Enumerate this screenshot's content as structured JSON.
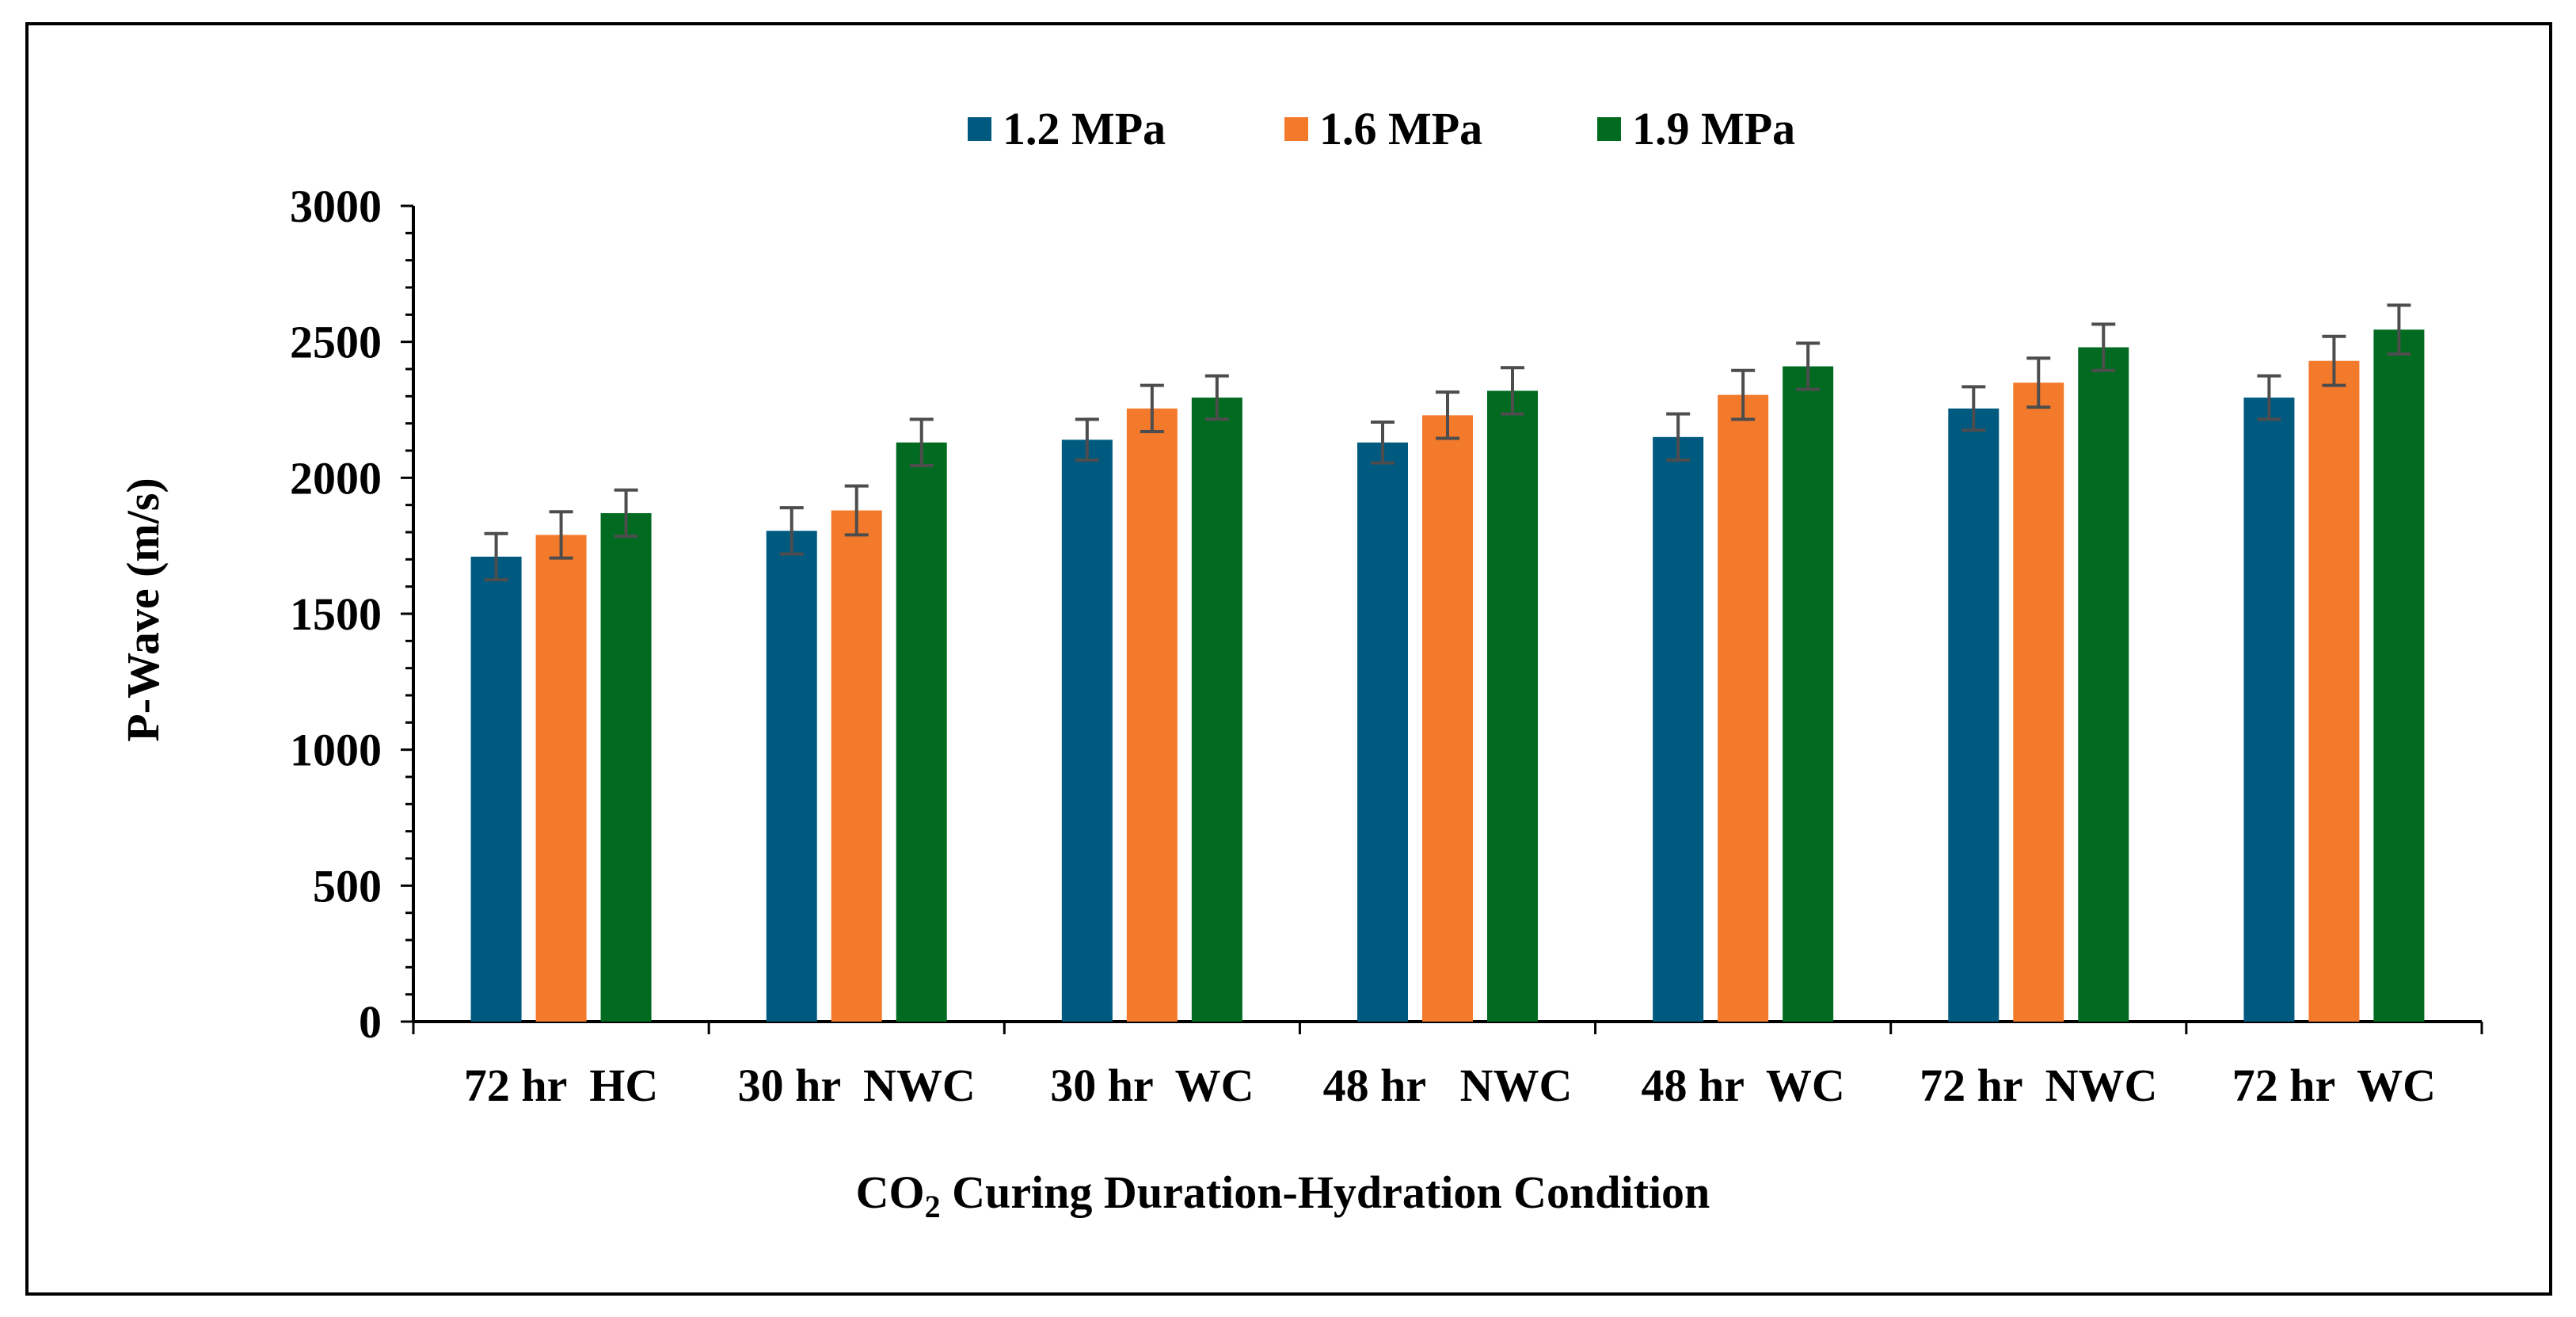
{
  "chart_data": {
    "type": "bar",
    "title": "",
    "xlabel_main": "CO",
    "xlabel_sub": "2",
    "xlabel_rest": " Curing Duration-Hydration Condition",
    "ylabel": "P-Wave  (m/s)",
    "ylim": [
      0,
      3000
    ],
    "yticks": [
      "0",
      "500",
      "1000",
      "1500",
      "2000",
      "2500",
      "3000"
    ],
    "ytick_values": [
      0,
      500,
      1000,
      1500,
      2000,
      2500,
      3000
    ],
    "legend_position": "top-center",
    "categories": [
      "72 hr  HC",
      "30 hr  NWC",
      "30 hr  WC",
      "48 hr   NWC",
      "48 hr  WC",
      "72 hr  NWC",
      "72 hr  WC"
    ],
    "series": [
      {
        "name": "1.2 MPa",
        "color": "#005a80",
        "values": [
          1710,
          1805,
          2140,
          2130,
          2150,
          2255,
          2295
        ],
        "errors": [
          85,
          85,
          75,
          75,
          85,
          80,
          80
        ]
      },
      {
        "name": "1.6 MPa",
        "color": "#f47a2b",
        "values": [
          1790,
          1880,
          2255,
          2230,
          2305,
          2350,
          2430
        ],
        "errors": [
          85,
          90,
          85,
          85,
          90,
          90,
          90
        ]
      },
      {
        "name": "1.9 MPa",
        "color": "#006b20",
        "values": [
          1870,
          2130,
          2295,
          2320,
          2410,
          2480,
          2545
        ],
        "errors": [
          85,
          85,
          80,
          85,
          85,
          85,
          90
        ]
      }
    ],
    "error_bar_color": "#4d4d4d"
  }
}
